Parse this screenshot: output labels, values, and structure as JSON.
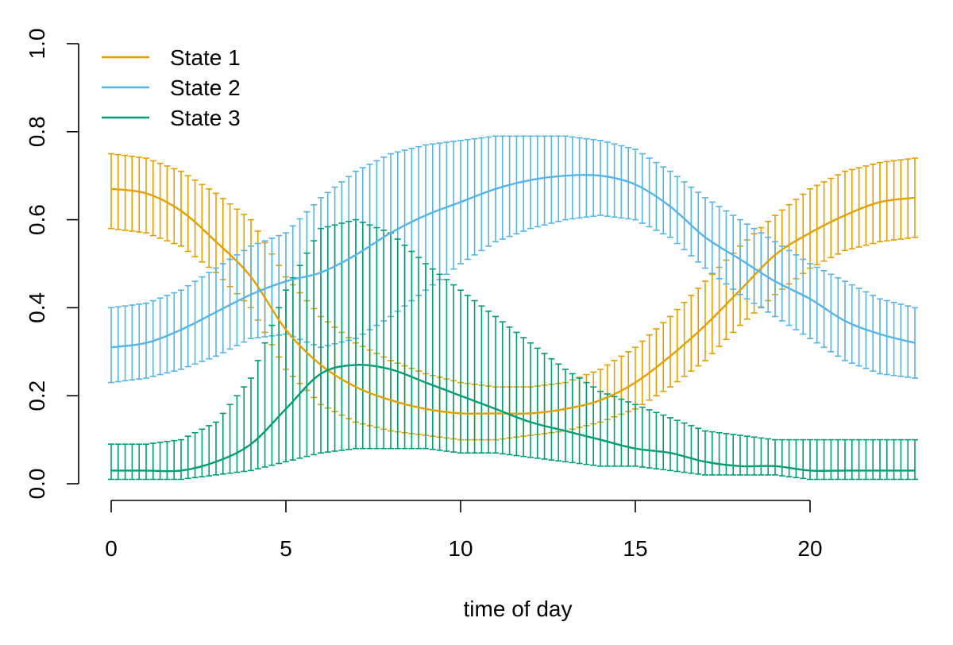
{
  "chart_data": {
    "type": "line",
    "xlabel": "time of day",
    "ylabel": "",
    "xlim": [
      0,
      23
    ],
    "ylim": [
      0,
      1
    ],
    "x_ticks": [
      0,
      5,
      10,
      15,
      20
    ],
    "y_ticks": [
      0.0,
      0.2,
      0.4,
      0.6,
      0.8,
      1.0
    ],
    "x_tick_labels": [
      "0",
      "5",
      "10",
      "15",
      "20"
    ],
    "y_tick_labels": [
      "0.0",
      "0.2",
      "0.4",
      "0.6",
      "0.8",
      "1.0"
    ],
    "grid": false,
    "legend_position": "top-left",
    "error_bars": true,
    "x": [
      0,
      1,
      2,
      3,
      4,
      5,
      6,
      7,
      8,
      9,
      10,
      11,
      12,
      13,
      14,
      15,
      16,
      17,
      18,
      19,
      20,
      21,
      22,
      23
    ],
    "series": [
      {
        "name": "State 1",
        "color": "#E69F00",
        "values": [
          0.67,
          0.66,
          0.62,
          0.55,
          0.47,
          0.35,
          0.27,
          0.22,
          0.19,
          0.17,
          0.16,
          0.16,
          0.16,
          0.17,
          0.19,
          0.23,
          0.29,
          0.36,
          0.44,
          0.52,
          0.57,
          0.61,
          0.64,
          0.65
        ],
        "lower": [
          0.58,
          0.57,
          0.54,
          0.48,
          0.4,
          0.26,
          0.18,
          0.14,
          0.12,
          0.11,
          0.1,
          0.1,
          0.11,
          0.12,
          0.14,
          0.17,
          0.22,
          0.28,
          0.36,
          0.43,
          0.49,
          0.53,
          0.55,
          0.56
        ],
        "upper": [
          0.75,
          0.74,
          0.71,
          0.66,
          0.6,
          0.47,
          0.38,
          0.32,
          0.28,
          0.25,
          0.23,
          0.22,
          0.22,
          0.23,
          0.26,
          0.31,
          0.38,
          0.46,
          0.54,
          0.61,
          0.67,
          0.71,
          0.73,
          0.74
        ]
      },
      {
        "name": "State 2",
        "color": "#56B4E9",
        "values": [
          0.31,
          0.32,
          0.35,
          0.39,
          0.43,
          0.46,
          0.48,
          0.52,
          0.57,
          0.61,
          0.64,
          0.67,
          0.69,
          0.7,
          0.7,
          0.68,
          0.63,
          0.56,
          0.51,
          0.46,
          0.42,
          0.37,
          0.34,
          0.32
        ],
        "lower": [
          0.23,
          0.24,
          0.26,
          0.29,
          0.33,
          0.34,
          0.31,
          0.33,
          0.38,
          0.44,
          0.5,
          0.55,
          0.58,
          0.6,
          0.61,
          0.6,
          0.56,
          0.49,
          0.43,
          0.38,
          0.33,
          0.28,
          0.25,
          0.24
        ],
        "upper": [
          0.4,
          0.41,
          0.44,
          0.49,
          0.54,
          0.57,
          0.65,
          0.71,
          0.75,
          0.77,
          0.78,
          0.79,
          0.79,
          0.79,
          0.78,
          0.76,
          0.71,
          0.65,
          0.6,
          0.55,
          0.5,
          0.46,
          0.42,
          0.4
        ]
      },
      {
        "name": "State 3",
        "color": "#009E73",
        "values": [
          0.03,
          0.03,
          0.03,
          0.05,
          0.09,
          0.17,
          0.25,
          0.27,
          0.26,
          0.23,
          0.2,
          0.17,
          0.14,
          0.12,
          0.1,
          0.08,
          0.07,
          0.05,
          0.04,
          0.04,
          0.03,
          0.03,
          0.03,
          0.03
        ],
        "lower": [
          0.01,
          0.01,
          0.01,
          0.02,
          0.03,
          0.05,
          0.07,
          0.08,
          0.08,
          0.08,
          0.07,
          0.07,
          0.06,
          0.05,
          0.04,
          0.04,
          0.03,
          0.02,
          0.02,
          0.02,
          0.01,
          0.01,
          0.01,
          0.01
        ],
        "upper": [
          0.09,
          0.09,
          0.1,
          0.14,
          0.24,
          0.44,
          0.58,
          0.6,
          0.57,
          0.5,
          0.44,
          0.38,
          0.32,
          0.26,
          0.21,
          0.18,
          0.15,
          0.12,
          0.11,
          0.1,
          0.1,
          0.1,
          0.1,
          0.1
        ]
      }
    ]
  }
}
